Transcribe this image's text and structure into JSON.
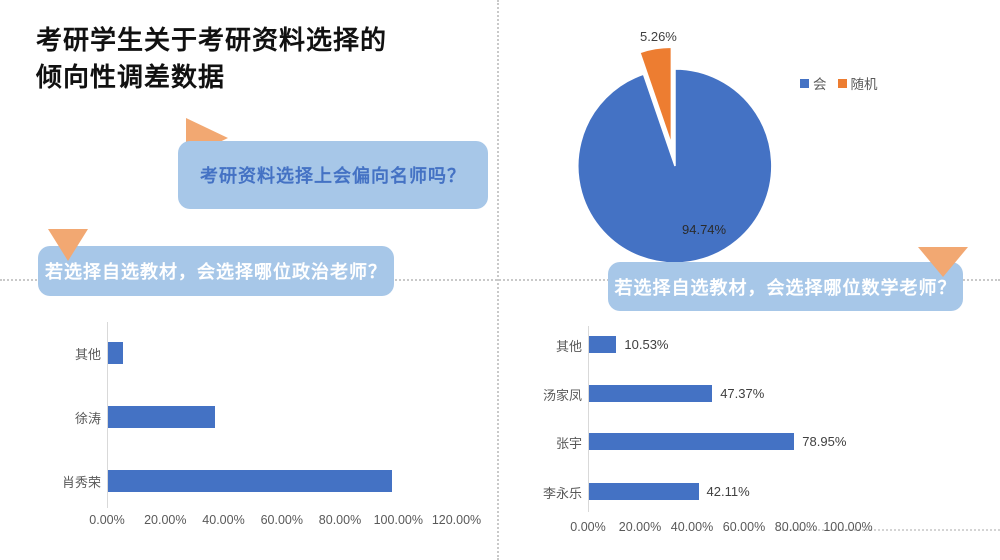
{
  "title": {
    "line1": "考研学生关于考研资料选择的",
    "line2": "倾向性调差数据"
  },
  "callouts": {
    "q1": {
      "text": "考研资料选择上会偏向名师吗？",
      "text_color": "#4472C4",
      "box_color": "#A7C7E8",
      "arrow": "right"
    },
    "q2": {
      "text": "若选择自选教材，会选择哪位政治老师？",
      "text_color": "#FFFFFF",
      "box_color": "#A7C7E8",
      "arrow": "down"
    },
    "q3": {
      "text": "若选择自选教材，会选择哪位数学老师？",
      "text_color": "#FFFFFF",
      "box_color": "#A7C7E8",
      "arrow": "down"
    }
  },
  "colors": {
    "chart_blue": "#4472C4",
    "pie_orange": "#ED7D31",
    "triangle_orange": "#F2A872",
    "axis_text_gray": "#595959",
    "guide_gray": "#C9C9C9"
  },
  "chart_data": [
    {
      "type": "pie",
      "question": "考研资料选择上会偏向名师吗？",
      "labels": [
        "会",
        "随机"
      ],
      "values": [
        94.74,
        5.26
      ],
      "value_labels": [
        "94.74%",
        "5.26%"
      ],
      "colors": [
        "#4472C4",
        "#ED7D31"
      ],
      "legend_position": "right",
      "exploded_slice": "随机"
    },
    {
      "type": "bar",
      "orientation": "horizontal",
      "question": "若选择自选教材，会选择哪位政治老师？",
      "categories": [
        "其他",
        "徐涛",
        "肖秀荣"
      ],
      "values": [
        5.26,
        36.84,
        97.37
      ],
      "color": "#4472C4",
      "xlim": [
        0,
        120
      ],
      "x_ticks": [
        "0.00%",
        "20.00%",
        "40.00%",
        "60.00%",
        "80.00%",
        "100.00%",
        "120.00%"
      ],
      "grid": false,
      "data_labels": false
    },
    {
      "type": "bar",
      "orientation": "horizontal",
      "question": "若选择自选教材，会选择哪位数学老师？",
      "categories": [
        "其他",
        "汤家凤",
        "张宇",
        "李永乐"
      ],
      "values": [
        10.53,
        47.37,
        78.95,
        42.11
      ],
      "value_labels": [
        "10.53%",
        "47.37%",
        "78.95%",
        "42.11%"
      ],
      "color": "#4472C4",
      "xlim": [
        0,
        100
      ],
      "x_ticks": [
        "0.00%",
        "20.00%",
        "40.00%",
        "60.00%",
        "80.00%",
        "100.00%"
      ],
      "grid": false,
      "data_labels": true
    }
  ]
}
